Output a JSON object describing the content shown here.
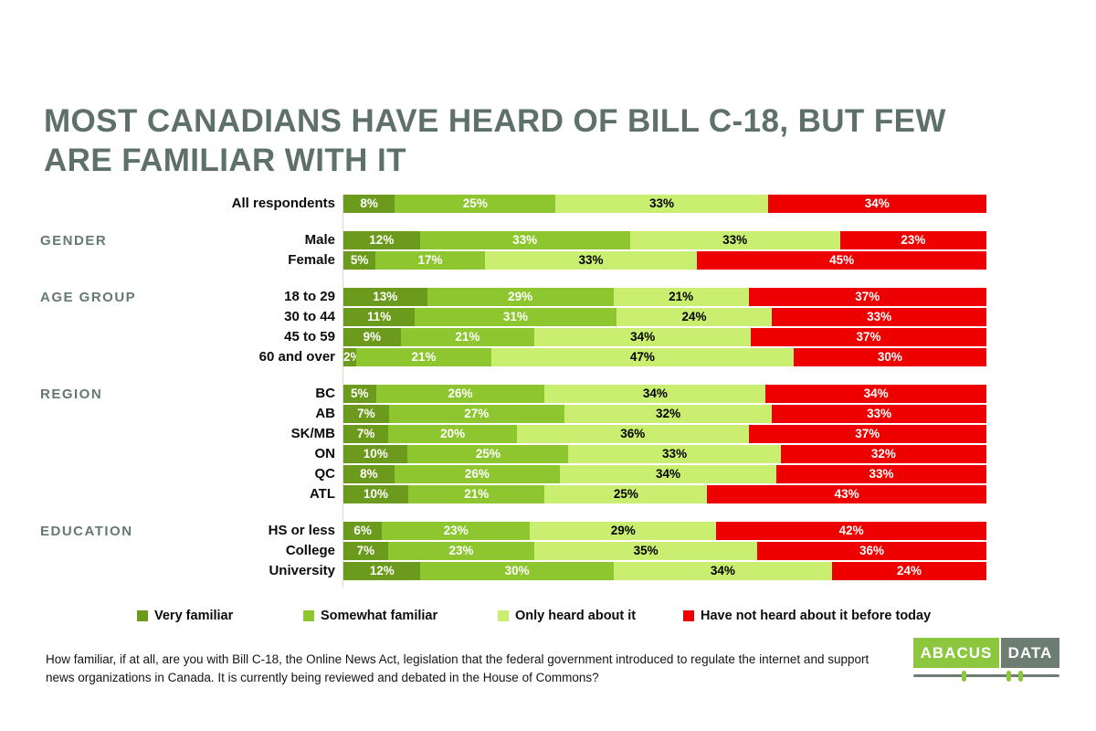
{
  "title_lines": [
    "MOST CANADIANS HAVE HEARD OF BILL C-18, BUT FEW",
    "ARE FAMILIAR WITH IT"
  ],
  "chart_data": {
    "type": "bar",
    "variant": "horizontal-stacked-100pct",
    "unit": "%",
    "xlim": [
      0,
      100
    ],
    "axes_visible": false,
    "grid": false,
    "value_labels": "inside-segments",
    "legend_position": "bottom",
    "series": [
      "Very familiar",
      "Somewhat familiar",
      "Only heard about it",
      "Have not heard about it before today"
    ],
    "series_colors": [
      "#6c9a1c",
      "#8dc62e",
      "#c9ee70",
      "#ee0000"
    ],
    "series_label_colors": [
      "#ffffff",
      "#ffffff",
      "#000000",
      "#ffffff"
    ],
    "groups": [
      {
        "label": "",
        "rows": [
          {
            "label": "All respondents",
            "values": [
              8,
              25,
              33,
              34
            ]
          }
        ]
      },
      {
        "label": "GENDER",
        "rows": [
          {
            "label": "Male",
            "values": [
              12,
              33,
              33,
              23
            ]
          },
          {
            "label": "Female",
            "values": [
              5,
              17,
              33,
              45
            ]
          }
        ]
      },
      {
        "label": "AGE GROUP",
        "rows": [
          {
            "label": "18 to 29",
            "values": [
              13,
              29,
              21,
              37
            ]
          },
          {
            "label": "30 to 44",
            "values": [
              11,
              31,
              24,
              33
            ]
          },
          {
            "label": "45 to 59",
            "values": [
              9,
              21,
              34,
              37
            ]
          },
          {
            "label": "60 and over",
            "values": [
              2,
              21,
              47,
              30
            ]
          }
        ]
      },
      {
        "label": "REGION",
        "rows": [
          {
            "label": "BC",
            "values": [
              5,
              26,
              34,
              34
            ]
          },
          {
            "label": "AB",
            "values": [
              7,
              27,
              32,
              33
            ]
          },
          {
            "label": "SK/MB",
            "values": [
              7,
              20,
              36,
              37
            ]
          },
          {
            "label": "ON",
            "values": [
              10,
              25,
              33,
              32
            ]
          },
          {
            "label": "QC",
            "values": [
              8,
              26,
              34,
              33
            ]
          },
          {
            "label": "ATL",
            "values": [
              10,
              21,
              25,
              43
            ]
          }
        ]
      },
      {
        "label": "EDUCATION",
        "rows": [
          {
            "label": "HS or less",
            "values": [
              6,
              23,
              29,
              42
            ]
          },
          {
            "label": "College",
            "values": [
              7,
              23,
              35,
              36
            ]
          },
          {
            "label": "University",
            "values": [
              12,
              30,
              34,
              24
            ]
          }
        ]
      }
    ]
  },
  "footnote": "How familiar, if at all, are you with Bill C-18, the Online News Act, legislation that the federal government introduced to regulate the internet and support news organizations in Canada. It is currently being reviewed and debated in the House of Commons?",
  "logo": {
    "part1": "ABACUS",
    "part2": "DATA"
  }
}
